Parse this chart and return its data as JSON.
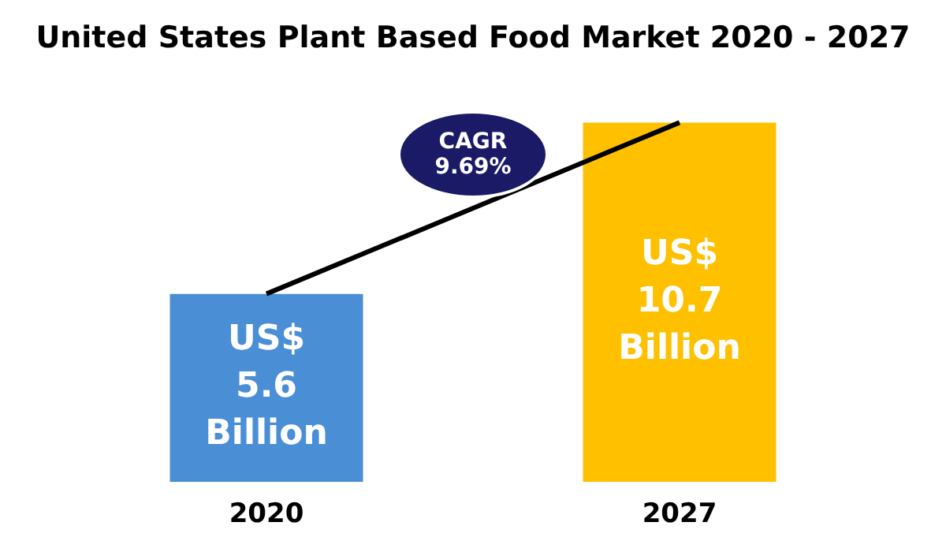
{
  "chart_data": {
    "type": "bar",
    "title": "United States Plant Based Food Market 2020 - 2027",
    "categories": [
      "2020",
      "2027"
    ],
    "series": [
      {
        "colors": [
          "#4a8fd6",
          "#ffc000"
        ],
        "values": [
          5.6,
          10.7
        ],
        "value_labels": [
          "US$ 5.6 Billion",
          "US$ 10.7 Billion"
        ]
      },
      {
        "type": "line",
        "color": "#000000",
        "values": [
          5.6,
          10.7
        ]
      }
    ],
    "annotations": [
      "CAGR 9.69%"
    ],
    "marker": "none",
    "grid": false,
    "legend": false,
    "tick_labels": "x"
  }
}
